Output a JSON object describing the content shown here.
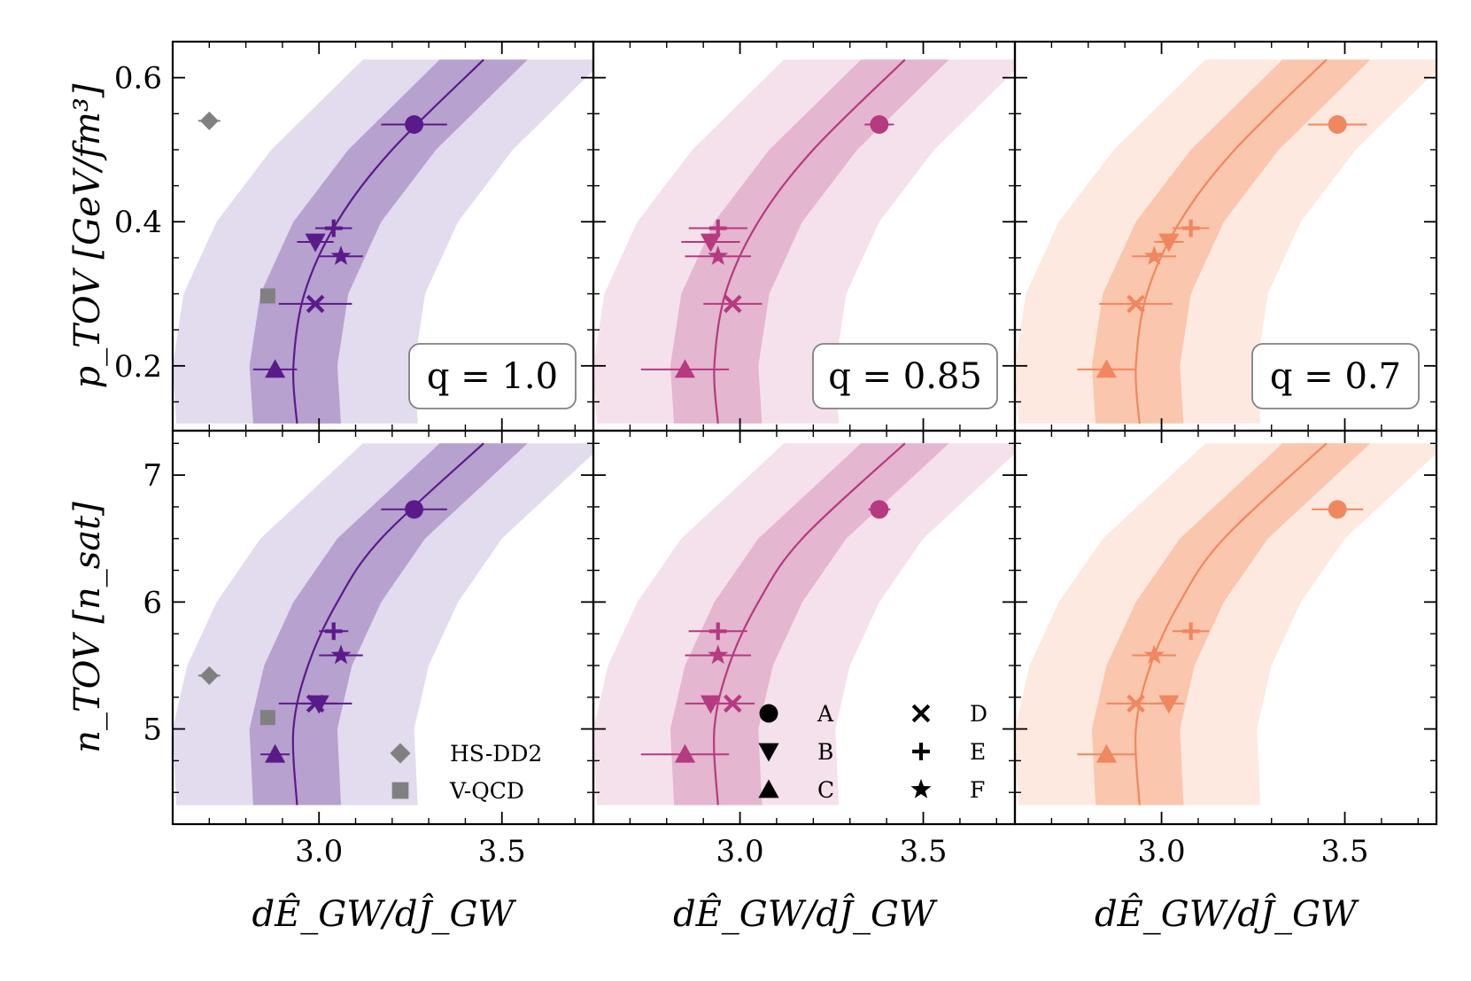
{
  "chart_data": {
    "type": "scatter",
    "x_tick_labels": [
      "3.0",
      "3.5"
    ],
    "x_ticks": [
      3.0,
      3.5
    ],
    "xlim": [
      2.6,
      3.75
    ],
    "xlabel": "dÊ_GW/dĴ_GW",
    "rows": [
      {
        "key": "p",
        "ylabel": "p_TOV [GeV/fm³]",
        "ylabel_main": "p",
        "ylabel_sub": "TOV",
        "ylabel_unit": "[GeV/fm³]",
        "ylim": [
          0.11,
          0.65
        ],
        "y_ticks": [
          0.2,
          0.4,
          0.6
        ],
        "y_tick_labels": [
          "0.2",
          "0.4",
          "0.6"
        ],
        "band_y": [
          0.12,
          0.2,
          0.3,
          0.4,
          0.5,
          0.625
        ],
        "fit_x": [
          2.94,
          2.93,
          2.96,
          3.05,
          3.2,
          3.45
        ],
        "inner_halfwidth": 0.12,
        "outer_halfwidth": 0.33
      },
      {
        "key": "n",
        "ylabel": "n_TOV [n_sat]",
        "ylabel_main": "n",
        "ylabel_sub": "TOV",
        "ylabel_unit": "[n_sat]",
        "ylim": [
          4.25,
          7.35
        ],
        "y_ticks": [
          5,
          6,
          7
        ],
        "y_tick_labels": [
          "5",
          "6",
          "7"
        ],
        "band_y": [
          4.4,
          5.0,
          5.5,
          6.0,
          6.5,
          7.25
        ],
        "fit_x": [
          2.94,
          2.93,
          2.97,
          3.05,
          3.17,
          3.45
        ],
        "inner_halfwidth": 0.12,
        "outer_halfwidth": 0.33
      }
    ],
    "panels": [
      {
        "q_label": "q = 1.0",
        "color": "#5b1a8a",
        "band_inner": "#b7a1cf",
        "band_outer": "#e3dbee",
        "x_shift": 0.0,
        "points": {
          "p": [
            {
              "label": "A",
              "marker": "circle",
              "x": 3.26,
              "y": 0.535,
              "xerr": 0.09
            },
            {
              "label": "B",
              "marker": "triangle-down",
              "x": 2.99,
              "y": 0.372,
              "xerr": 0.05
            },
            {
              "label": "C",
              "marker": "triangle-up",
              "x": 2.88,
              "y": 0.195,
              "xerr": 0.06
            },
            {
              "label": "D",
              "marker": "x",
              "x": 2.99,
              "y": 0.286,
              "xerr": 0.1
            },
            {
              "label": "E",
              "marker": "plus",
              "x": 3.04,
              "y": 0.391,
              "xerr": 0.05
            },
            {
              "label": "F",
              "marker": "star",
              "x": 3.06,
              "y": 0.352,
              "xerr": 0.06
            }
          ],
          "n": [
            {
              "label": "A",
              "marker": "circle",
              "x": 3.26,
              "y": 6.73,
              "xerr": 0.09
            },
            {
              "label": "B",
              "marker": "triangle-down",
              "x": 3.0,
              "y": 5.2,
              "xerr": 0.05
            },
            {
              "label": "C",
              "marker": "triangle-up",
              "x": 2.88,
              "y": 4.8,
              "xerr": 0.04
            },
            {
              "label": "D",
              "marker": "x",
              "x": 2.99,
              "y": 5.2,
              "xerr": 0.1
            },
            {
              "label": "E",
              "marker": "plus",
              "x": 3.04,
              "y": 5.77,
              "xerr": 0.04
            },
            {
              "label": "F",
              "marker": "star",
              "x": 3.06,
              "y": 5.58,
              "xerr": 0.06
            }
          ]
        },
        "reference_points": {
          "p": [
            {
              "label": "HS-DD2",
              "marker": "diamond",
              "x": 2.7,
              "y": 0.54,
              "xerr": 0.03
            },
            {
              "label": "V-QCD",
              "marker": "square",
              "x": 2.86,
              "y": 0.297,
              "xerr": 0.02
            }
          ],
          "n": [
            {
              "label": "HS-DD2",
              "marker": "diamond",
              "x": 2.7,
              "y": 5.42,
              "xerr": 0.03
            },
            {
              "label": "V-QCD",
              "marker": "square",
              "x": 2.86,
              "y": 5.09,
              "xerr": 0.02
            }
          ]
        }
      },
      {
        "q_label": "q = 0.85",
        "color": "#b53a80",
        "band_inner": "#e4b6cf",
        "band_outer": "#f5e1ec",
        "x_shift": 0.0,
        "points": {
          "p": [
            {
              "label": "A",
              "marker": "circle",
              "x": 3.38,
              "y": 0.535,
              "xerr": 0.04
            },
            {
              "label": "B",
              "marker": "triangle-down",
              "x": 2.92,
              "y": 0.372,
              "xerr": 0.08
            },
            {
              "label": "C",
              "marker": "triangle-up",
              "x": 2.85,
              "y": 0.195,
              "xerr": 0.12
            },
            {
              "label": "D",
              "marker": "x",
              "x": 2.98,
              "y": 0.286,
              "xerr": 0.08
            },
            {
              "label": "E",
              "marker": "plus",
              "x": 2.94,
              "y": 0.391,
              "xerr": 0.08
            },
            {
              "label": "F",
              "marker": "star",
              "x": 2.94,
              "y": 0.352,
              "xerr": 0.09
            }
          ],
          "n": [
            {
              "label": "A",
              "marker": "circle",
              "x": 3.38,
              "y": 6.73,
              "xerr": 0.03
            },
            {
              "label": "B",
              "marker": "triangle-down",
              "x": 2.92,
              "y": 5.2,
              "xerr": 0.07
            },
            {
              "label": "C",
              "marker": "triangle-up",
              "x": 2.85,
              "y": 4.8,
              "xerr": 0.12
            },
            {
              "label": "D",
              "marker": "x",
              "x": 2.98,
              "y": 5.2,
              "xerr": 0.06
            },
            {
              "label": "E",
              "marker": "plus",
              "x": 2.94,
              "y": 5.77,
              "xerr": 0.08
            },
            {
              "label": "F",
              "marker": "star",
              "x": 2.94,
              "y": 5.58,
              "xerr": 0.09
            }
          ]
        },
        "reference_points": {
          "p": [],
          "n": []
        }
      },
      {
        "q_label": "q = 0.7",
        "color": "#f0875e",
        "band_inner": "#fac6ad",
        "band_outer": "#fde9df",
        "x_shift": 0.0,
        "points": {
          "p": [
            {
              "label": "A",
              "marker": "circle",
              "x": 3.48,
              "y": 0.535,
              "xerr": 0.08
            },
            {
              "label": "B",
              "marker": "triangle-down",
              "x": 3.02,
              "y": 0.372,
              "xerr": 0.04
            },
            {
              "label": "C",
              "marker": "triangle-up",
              "x": 2.85,
              "y": 0.195,
              "xerr": 0.08
            },
            {
              "label": "D",
              "marker": "x",
              "x": 2.93,
              "y": 0.286,
              "xerr": 0.1
            },
            {
              "label": "E",
              "marker": "plus",
              "x": 3.08,
              "y": 0.391,
              "xerr": 0.05
            },
            {
              "label": "F",
              "marker": "star",
              "x": 2.98,
              "y": 0.352,
              "xerr": 0.06
            }
          ],
          "n": [
            {
              "label": "A",
              "marker": "circle",
              "x": 3.48,
              "y": 6.73,
              "xerr": 0.07
            },
            {
              "label": "B",
              "marker": "triangle-down",
              "x": 3.02,
              "y": 5.2,
              "xerr": 0.04
            },
            {
              "label": "C",
              "marker": "triangle-up",
              "x": 2.85,
              "y": 4.8,
              "xerr": 0.08
            },
            {
              "label": "D",
              "marker": "x",
              "x": 2.93,
              "y": 5.2,
              "xerr": 0.08
            },
            {
              "label": "E",
              "marker": "plus",
              "x": 3.08,
              "y": 5.77,
              "xerr": 0.05
            },
            {
              "label": "F",
              "marker": "star",
              "x": 2.98,
              "y": 5.58,
              "xerr": 0.06
            }
          ]
        },
        "reference_points": {
          "p": [],
          "n": []
        }
      }
    ],
    "legend_eos": [
      {
        "label": "HS-DD2",
        "marker": "diamond"
      },
      {
        "label": "V-QCD",
        "marker": "square"
      }
    ],
    "legend_models": [
      {
        "label": "A",
        "marker": "circle"
      },
      {
        "label": "B",
        "marker": "triangle-down"
      },
      {
        "label": "C",
        "marker": "triangle-up"
      },
      {
        "label": "D",
        "marker": "x"
      },
      {
        "label": "E",
        "marker": "plus"
      },
      {
        "label": "F",
        "marker": "star"
      }
    ],
    "reference_color": "#808080"
  }
}
